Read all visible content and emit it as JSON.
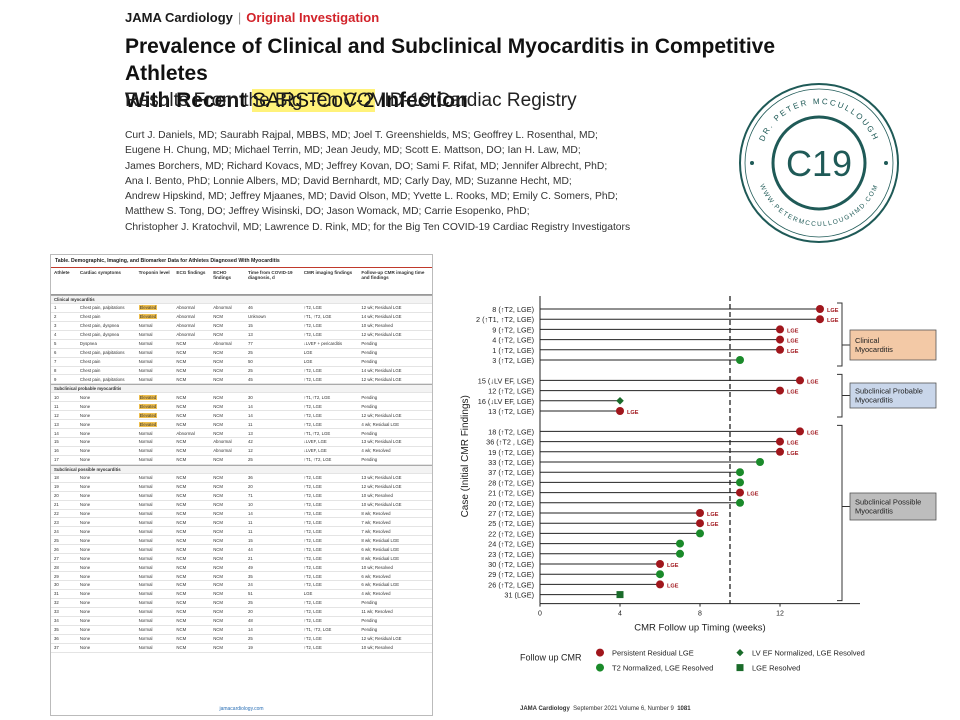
{
  "header": {
    "journal": "JAMA Cardiology",
    "separator": "|",
    "section": "Original Investigation"
  },
  "title": {
    "part1": "Prevalence of Clinical and Subclinical Myocarditis in Competitive Athletes",
    "part2": "With Recent ",
    "highlight": "SARS-CoV-2",
    "part3": " Infection"
  },
  "subtitle": "Results From the Big Ten COVID-19 Cardiac Registry",
  "authors": [
    "Curt J. Daniels, MD; Saurabh Rajpal, MBBS, MD; Joel T. Greenshields, MS; Geoffrey L. Rosenthal, MD;",
    "Eugene H. Chung, MD; Michael Terrin, MD; Jean Jeudy, MD; Scott E. Mattson, DO; Ian H. Law, MD;",
    "James Borchers, MD; Richard Kovacs, MD; Jeffrey Kovan, DO; Sami F. Rifat, MD; Jennifer Albrecht, PhD;",
    "Ana I. Bento, PhD; Lonnie Albers, MD; David Bernhardt, MD; Carly Day, MD; Suzanne Hecht, MD;",
    "Andrew Hipskind, MD; Jeffrey Mjaanes, MD; David Olson, MD; Yvette L. Rooks, MD; Emily C. Somers, PhD;",
    "Matthew S. Tong, DO; Jeffrey Wisinski, DO; Jason Womack, MD; Carrie Esopenko, PhD;",
    "Christopher J. Kratochvil, MD; Lawrence D. Rink, MD; for the Big Ten COVID-19 Cardiac Registry Investigators"
  ],
  "seal": {
    "text": "C19",
    "ring_top": "DR. PETER MCCULLOUGH",
    "ring_bottom": "WWW.PETERMCCULLOUGHMD.COM",
    "color": "#1f5a57"
  },
  "table": {
    "title": "Table. Demographic, Imaging, and Biomarker Data for Athletes Diagnosed With Myocarditis",
    "headers": [
      "Athlete",
      "Cardiac symptoms",
      "Troponin level",
      "ECG findings",
      "ECHO findings",
      "Time from COVID-19 diagnosis, d",
      "CMR imaging findings",
      "Follow-up CMR imaging time and findings"
    ],
    "sections": [
      {
        "label": "Clinical myocarditis",
        "rows": [
          [
            "1",
            "Chest pain, palpitations",
            "Elevated",
            "Abnormal",
            "Abnormal",
            "46",
            "↑T2, LGE",
            "12 wk; Residual LGE"
          ],
          [
            "2",
            "Chest pain",
            "Elevated",
            "Abnormal",
            "NCM",
            "Unknown",
            "↑T1, ↑T2, LGE",
            "14 wk; Residual LGE"
          ],
          [
            "3",
            "Chest pain, dyspnea",
            "Normal",
            "Abnormal",
            "NCM",
            "15",
            "↑T2, LGE",
            "10 wk; Resolved"
          ],
          [
            "4",
            "Chest pain, dyspnea",
            "Normal",
            "Abnormal",
            "NCM",
            "13",
            "↑T2, LGE",
            "12 wk; Residual LGE"
          ],
          [
            "5",
            "Dyspnea",
            "Normal",
            "NCM",
            "Abnormal",
            "77",
            "↓LVEF + pericarditis",
            "Pending"
          ],
          [
            "6",
            "Chest pain, palpitations",
            "Normal",
            "NCM",
            "NCM",
            "25",
            "LGE",
            "Pending"
          ],
          [
            "7",
            "Chest pain",
            "Normal",
            "NCM",
            "NCM",
            "50",
            "LGE",
            "Pending"
          ],
          [
            "8",
            "Chest pain",
            "Normal",
            "NCM",
            "NCM",
            "25",
            "↑T2, LGE",
            "14 wk; Residual LGE"
          ],
          [
            "9",
            "Chest pain, palpitations",
            "Normal",
            "NCM",
            "NCM",
            "45",
            "↑T2, LGE",
            "12 wk; Residual LGE"
          ]
        ]
      },
      {
        "label": "Subclinical probable myocarditis",
        "rows": [
          [
            "10",
            "None",
            "Elevated",
            "NCM",
            "NCM",
            "30",
            "↑T1,↑T2, LGE",
            "Pending"
          ],
          [
            "11",
            "None",
            "Elevated",
            "NCM",
            "NCM",
            "14",
            "↑T2, LGE",
            "Pending"
          ],
          [
            "12",
            "None",
            "Elevated",
            "NCM",
            "NCM",
            "14",
            "↑T2, LGE",
            "12 wk; Residual LGE"
          ],
          [
            "13",
            "None",
            "Elevated",
            "NCM",
            "NCM",
            "11",
            "↑T2, LGE",
            "4 wk; Residual LGE"
          ],
          [
            "14",
            "None",
            "Normal",
            "Abnormal",
            "NCM",
            "13",
            "↑T1,↑T2, LGE",
            "Pending"
          ],
          [
            "15",
            "None",
            "Normal",
            "NCM",
            "Abnormal",
            "42",
            "↓LVEF, LGE",
            "13 wk; Residual LGE"
          ],
          [
            "16",
            "None",
            "Normal",
            "NCM",
            "Abnormal",
            "12",
            "↓LVEF, LGE",
            "4 wk; Resolved"
          ],
          [
            "17",
            "None",
            "Normal",
            "NCM",
            "NCM",
            "25",
            "↑T1, ↑T2, LGE",
            "Pending"
          ]
        ]
      },
      {
        "label": "Subclinical possible myocarditis",
        "rows": [
          [
            "18",
            "None",
            "Normal",
            "NCM",
            "NCM",
            "36",
            "↑T2, LGE",
            "13 wk; Residual LGE"
          ],
          [
            "19",
            "None",
            "Normal",
            "NCM",
            "NCM",
            "20",
            "↑T2, LGE",
            "12 wk; Residual LGE"
          ],
          [
            "20",
            "None",
            "Normal",
            "NCM",
            "NCM",
            "71",
            "↑T2, LGE",
            "10 wk; Resolved"
          ],
          [
            "21",
            "None",
            "Normal",
            "NCM",
            "NCM",
            "10",
            "↑T2, LGE",
            "10 wk; Residual LGE"
          ],
          [
            "22",
            "None",
            "Normal",
            "NCM",
            "NCM",
            "14",
            "↑T2, LGE",
            "8 wk; Resolved"
          ],
          [
            "23",
            "None",
            "Normal",
            "NCM",
            "NCM",
            "11",
            "↑T2, LGE",
            "7 wk; Resolved"
          ],
          [
            "24",
            "None",
            "Normal",
            "NCM",
            "NCM",
            "11",
            "↑T2, LGE",
            "7 wk; Resolved"
          ],
          [
            "25",
            "None",
            "Normal",
            "NCM",
            "NCM",
            "15",
            "↑T2, LGE",
            "8 wk; Residual LGE"
          ],
          [
            "26",
            "None",
            "Normal",
            "NCM",
            "NCM",
            "44",
            "↑T2, LGE",
            "6 wk; Residual LGE"
          ],
          [
            "27",
            "None",
            "Normal",
            "NCM",
            "NCM",
            "21",
            "↑T2, LGE",
            "8 wk; Residual LGE"
          ],
          [
            "28",
            "None",
            "Normal",
            "NCM",
            "NCM",
            "49",
            "↑T2, LGE",
            "10 wk; Resolved"
          ],
          [
            "29",
            "None",
            "Normal",
            "NCM",
            "NCM",
            "35",
            "↑T2, LGE",
            "6 wk; Resolved"
          ],
          [
            "30",
            "None",
            "Normal",
            "NCM",
            "NCM",
            "24",
            "↑T2, LGE",
            "6 wk; Residual LGE"
          ],
          [
            "31",
            "None",
            "Normal",
            "NCM",
            "NCM",
            "51",
            "LGE",
            "4 wk; Resolved"
          ],
          [
            "32",
            "None",
            "Normal",
            "NCM",
            "NCM",
            "25",
            "↑T2, LGE",
            "Pending"
          ],
          [
            "33",
            "None",
            "Normal",
            "NCM",
            "NCM",
            "20",
            "↑T2, LGE",
            "11 wk; Resolved"
          ],
          [
            "34",
            "None",
            "Normal",
            "NCM",
            "NCM",
            "48",
            "↑T2, LGE",
            "Pending"
          ],
          [
            "35",
            "None",
            "Normal",
            "NCM",
            "NCM",
            "14",
            "↑T1, ↑T2, LGE",
            "Pending"
          ],
          [
            "36",
            "None",
            "Normal",
            "NCM",
            "NCM",
            "25",
            "↑T2, LGE",
            "12 wk; Residual LGE"
          ],
          [
            "37",
            "None",
            "Normal",
            "NCM",
            "NCM",
            "19",
            "↑T2, LGE",
            "10 wk; Resolved"
          ]
        ]
      }
    ],
    "footer": "jamacardiology.com"
  },
  "page_footer": {
    "journal": "JAMA Cardiology",
    "issue": "September 2021  Volume 6, Number 9",
    "page": "1081"
  },
  "chart_data": {
    "type": "scatter",
    "xlabel": "CMR Follow up Timing (weeks)",
    "ylabel": "Case (Initial CMR Findings)",
    "xlim": [
      0,
      16
    ],
    "xticks": [
      0,
      4,
      8,
      12
    ],
    "dashed_line_x": 9.5,
    "rows": [
      {
        "label": "8 (↑T2, LGE)",
        "x": 14,
        "status": "persistent",
        "lge": true
      },
      {
        "label": "2 (↑T1, ↑T2, LGE)",
        "x": 14,
        "status": "persistent",
        "lge": true
      },
      {
        "label": "9 (↑T2, LGE)",
        "x": 12,
        "status": "persistent",
        "lge": true
      },
      {
        "label": "4 (↑T2, LGE)",
        "x": 12,
        "status": "persistent",
        "lge": true
      },
      {
        "label": "1 (↑T2, LGE)",
        "x": 12,
        "status": "persistent",
        "lge": true
      },
      {
        "label": "3 (↑T2, LGE)",
        "x": 10,
        "status": "t2_normalized",
        "lge": false
      },
      {
        "gap": true
      },
      {
        "label": "15 (↓LV EF, LGE)",
        "x": 13,
        "status": "persistent",
        "lge": true
      },
      {
        "label": "12 (↑T2, LGE)",
        "x": 12,
        "status": "persistent",
        "lge": true
      },
      {
        "label": "16 (↓LV EF, LGE)",
        "x": 4,
        "status": "lvef_normalized",
        "lge": false
      },
      {
        "label": "13 (↑T2, LGE)",
        "x": 4,
        "status": "persistent",
        "lge": true
      },
      {
        "gap": true
      },
      {
        "label": "18 (↑T2, LGE)",
        "x": 13,
        "status": "persistent",
        "lge": true
      },
      {
        "label": "36 (↑T2 , LGE)",
        "x": 12,
        "status": "persistent",
        "lge": true
      },
      {
        "label": "19 (↑T2, LGE)",
        "x": 12,
        "status": "persistent",
        "lge": true
      },
      {
        "label": "33 (↑T2, LGE)",
        "x": 11,
        "status": "t2_normalized",
        "lge": false
      },
      {
        "label": "37 (↑T2, LGE)",
        "x": 10,
        "status": "t2_normalized",
        "lge": false
      },
      {
        "label": "28 (↑T2, LGE)",
        "x": 10,
        "status": "t2_normalized",
        "lge": false
      },
      {
        "label": "21 (↑T2, LGE)",
        "x": 10,
        "status": "persistent",
        "lge": true
      },
      {
        "label": "20 (↑T2, LGE)",
        "x": 10,
        "status": "t2_normalized",
        "lge": false
      },
      {
        "label": "27 (↑T2, LGE)",
        "x": 8,
        "status": "persistent",
        "lge": true
      },
      {
        "label": "25 (↑T2, LGE)",
        "x": 8,
        "status": "persistent",
        "lge": true
      },
      {
        "label": "22 (↑T2, LGE)",
        "x": 8,
        "status": "t2_normalized",
        "lge": false
      },
      {
        "label": "24 (↑T2, LGE)",
        "x": 7,
        "status": "t2_normalized",
        "lge": false
      },
      {
        "label": "23 (↑T2, LGE)",
        "x": 7,
        "status": "t2_normalized",
        "lge": false
      },
      {
        "label": "30 (↑T2, LGE)",
        "x": 6,
        "status": "persistent",
        "lge": true
      },
      {
        "label": "29 (↑T2, LGE)",
        "x": 6,
        "status": "t2_normalized",
        "lge": false
      },
      {
        "label": "26 (↑T2, LGE)",
        "x": 6,
        "status": "persistent",
        "lge": true
      },
      {
        "label": "31 (LGE)",
        "x": 4,
        "status": "lge_resolved",
        "lge": false
      }
    ],
    "point_label": "LGE",
    "groups": [
      {
        "label": "Clinical Myocarditis",
        "fill": "#f3c9a6"
      },
      {
        "label": "Subclinical Probable Myocarditis",
        "fill": "#c9d6ea"
      },
      {
        "label": "Subclinical Possible Myocarditis",
        "fill": "#bdbdbd"
      }
    ],
    "legend_title": "Follow up CMR",
    "legend": [
      {
        "key": "persistent",
        "label": "Persistent Residual LGE",
        "color": "#a0161c",
        "shape": "circle"
      },
      {
        "key": "lvef_normalized",
        "label": "LV EF Normalized, LGE Resolved",
        "color": "#1a6b2a",
        "shape": "diamond"
      },
      {
        "key": "t2_normalized",
        "label": "T2 Normalized, LGE Resolved",
        "color": "#1a8a2a",
        "shape": "circle"
      },
      {
        "key": "lge_resolved",
        "label": "LGE Resolved",
        "color": "#1a6b2a",
        "shape": "square"
      }
    ]
  }
}
